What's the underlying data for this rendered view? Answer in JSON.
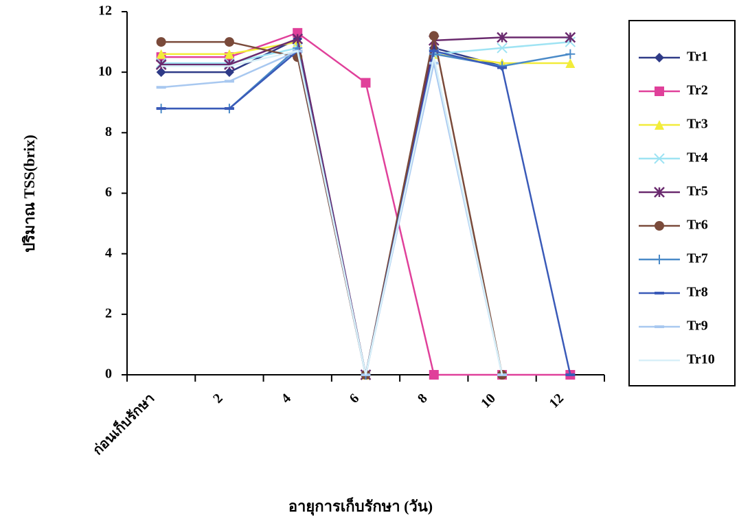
{
  "chart_data": {
    "type": "line",
    "y_label": "ปริมาณ TSS(brix)",
    "x_label": "อายุการเก็บรักษา (วัน)",
    "categories": [
      "ก่อนเก็บรักษา",
      "2",
      "4",
      "6",
      "8",
      "10",
      "12"
    ],
    "ylim": [
      0,
      12
    ],
    "yticks": [
      0,
      2,
      4,
      6,
      8,
      10,
      12
    ],
    "legend": "right",
    "series": [
      {
        "name": "Tr1",
        "color": "#2e3a87",
        "marker": "diamond",
        "values": [
          10.0,
          10.0,
          11.1,
          0,
          10.8,
          10.2,
          null
        ]
      },
      {
        "name": "Tr2",
        "color": "#e0409a",
        "marker": "square",
        "values": [
          10.5,
          10.5,
          11.3,
          9.65,
          0,
          0,
          0
        ]
      },
      {
        "name": "Tr3",
        "color": "#f2ec3a",
        "marker": "triangle",
        "values": [
          10.6,
          10.6,
          11.0,
          0,
          10.6,
          10.3,
          10.3
        ]
      },
      {
        "name": "Tr4",
        "color": "#9ee3f3",
        "marker": "x",
        "values": [
          10.3,
          10.3,
          10.8,
          0,
          10.6,
          10.8,
          11.0
        ]
      },
      {
        "name": "Tr5",
        "color": "#6a2a6e",
        "marker": "asterisk",
        "values": [
          10.25,
          10.25,
          11.1,
          0,
          11.05,
          11.15,
          11.15
        ]
      },
      {
        "name": "Tr6",
        "color": "#7a4a3a",
        "marker": "circle",
        "values": [
          11.0,
          11.0,
          10.5,
          0,
          11.2,
          0,
          null
        ]
      },
      {
        "name": "Tr7",
        "color": "#4a8ac8",
        "marker": "plus",
        "values": [
          8.8,
          8.8,
          10.8,
          0,
          10.6,
          10.2,
          10.6
        ]
      },
      {
        "name": "Tr8",
        "color": "#3a5ab8",
        "marker": "dash",
        "values": [
          8.8,
          8.8,
          10.7,
          0,
          10.7,
          10.15,
          0
        ]
      },
      {
        "name": "Tr9",
        "color": "#a8c8f0",
        "marker": "dash",
        "values": [
          9.5,
          9.7,
          10.7,
          0,
          10.3,
          0,
          null
        ]
      },
      {
        "name": "Tr10",
        "color": "#d8f0f8",
        "marker": "none",
        "values": [
          10.2,
          10.2,
          10.7,
          0,
          10.5,
          0,
          null
        ]
      }
    ]
  }
}
